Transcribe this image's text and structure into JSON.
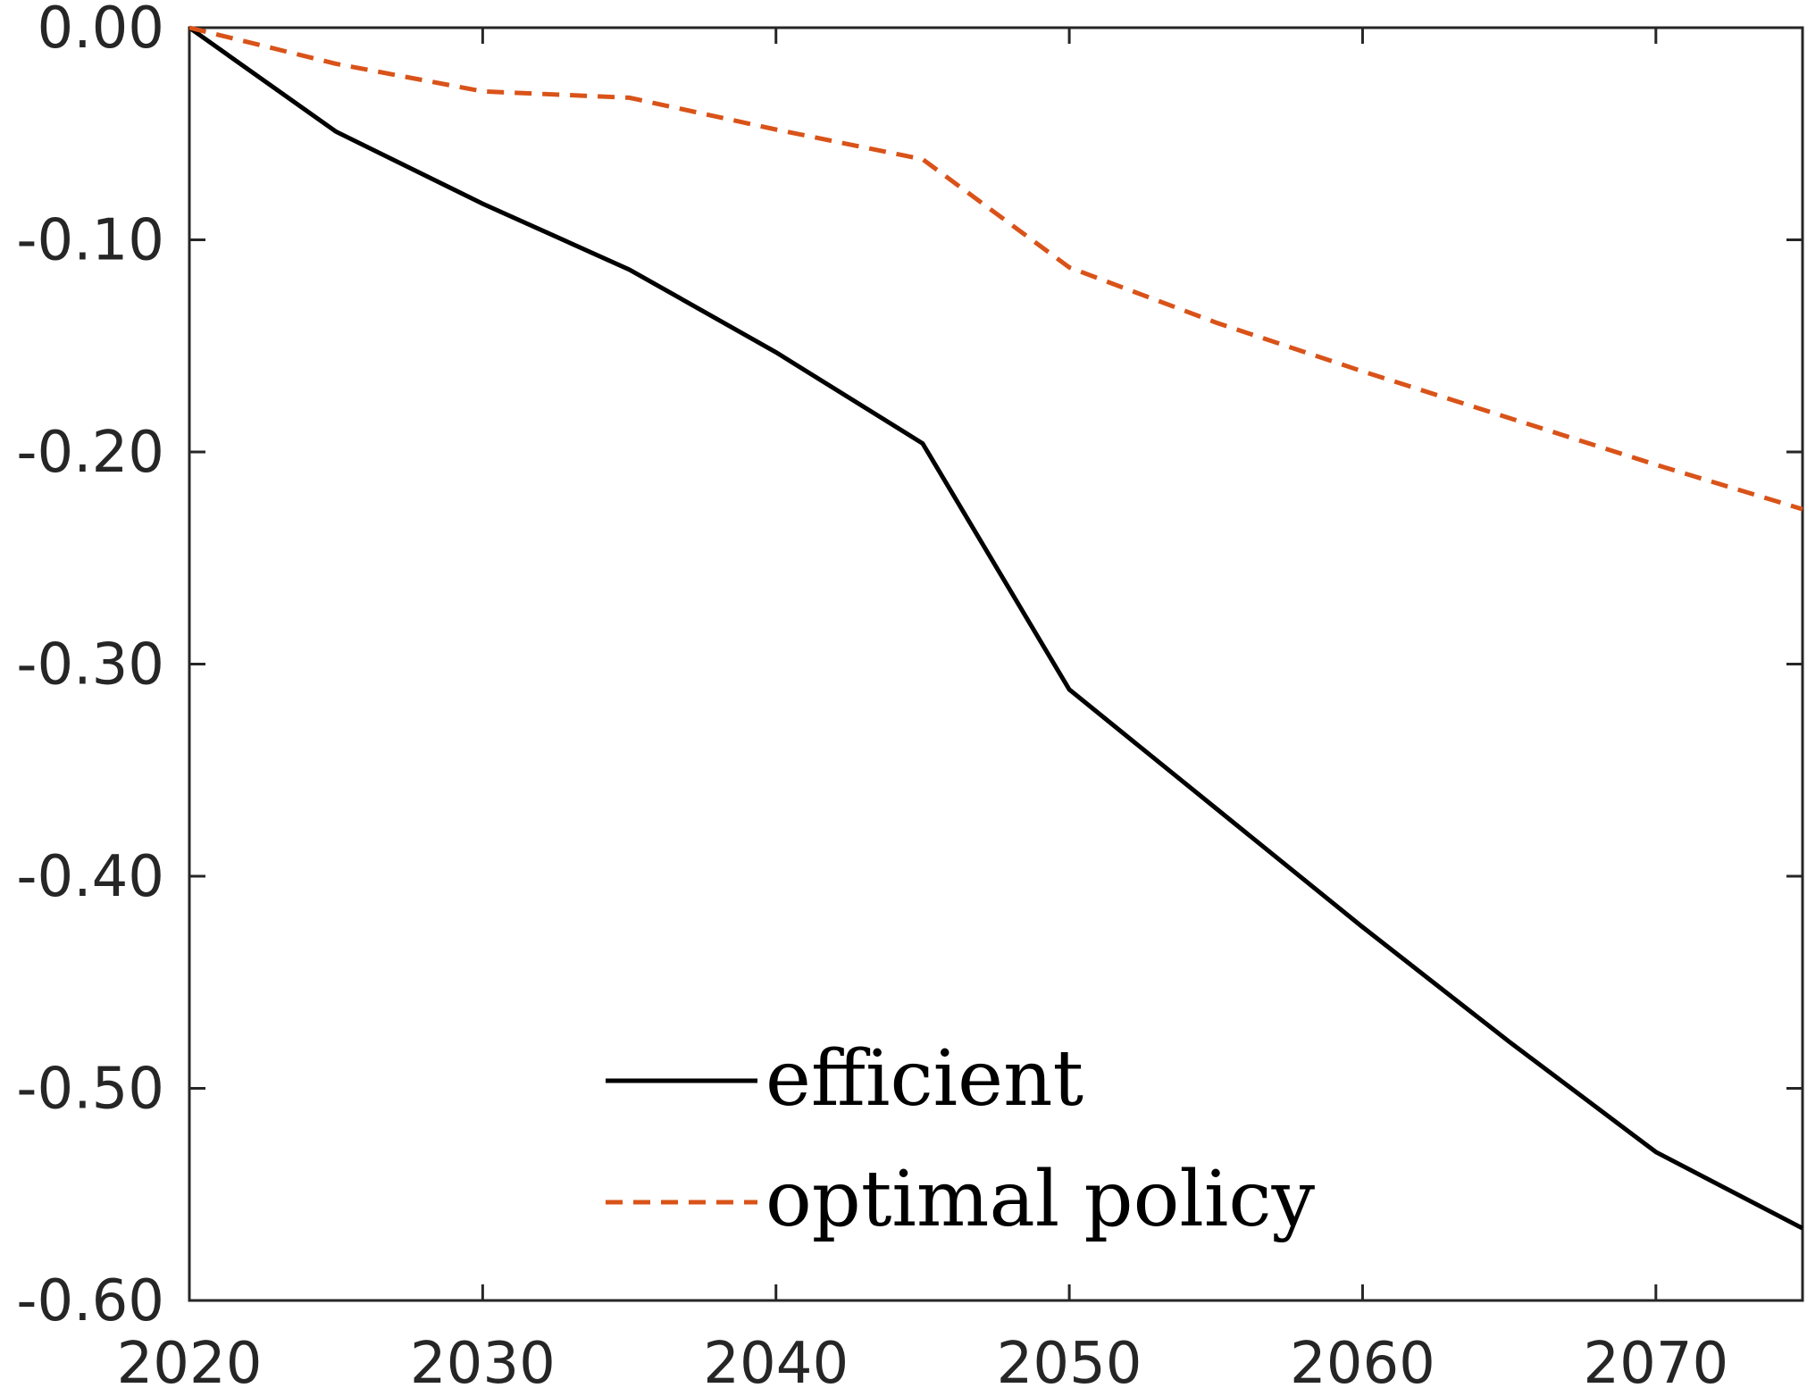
{
  "chart_data": {
    "type": "line",
    "title": "",
    "xlabel": "",
    "ylabel": "",
    "xlim": [
      2020,
      2075
    ],
    "ylim": [
      -0.6,
      0.0
    ],
    "x_ticks": [
      2020,
      2030,
      2040,
      2050,
      2060,
      2070
    ],
    "x_tick_labels": [
      "2020",
      "2030",
      "2040",
      "2050",
      "2060",
      "2070"
    ],
    "y_ticks": [
      0.0,
      -0.1,
      -0.2,
      -0.3,
      -0.4,
      -0.5,
      -0.6
    ],
    "y_tick_labels": [
      "0.00",
      "-0.10",
      "-0.20",
      "-0.30",
      "-0.40",
      "-0.50",
      "-0.60"
    ],
    "grid": false,
    "legend_position": "bottom-center",
    "series": [
      {
        "name": "efficient",
        "color": "#000000",
        "dash": "solid",
        "x": [
          2020,
          2025,
          2030,
          2035,
          2040,
          2045,
          2050,
          2055,
          2060,
          2065,
          2070,
          2075
        ],
        "y": [
          0.0,
          -0.049,
          -0.083,
          -0.114,
          -0.153,
          -0.196,
          -0.312,
          -0.368,
          -0.424,
          -0.478,
          -0.53,
          -0.566
        ]
      },
      {
        "name": "optimal policy",
        "color": "#D95319",
        "dash": "dashed",
        "x": [
          2020,
          2025,
          2030,
          2035,
          2040,
          2045,
          2050,
          2055,
          2060,
          2065,
          2070,
          2075
        ],
        "y": [
          0.0,
          -0.017,
          -0.03,
          -0.033,
          -0.048,
          -0.062,
          -0.113,
          -0.139,
          -0.162,
          -0.184,
          -0.206,
          -0.227
        ]
      }
    ]
  }
}
